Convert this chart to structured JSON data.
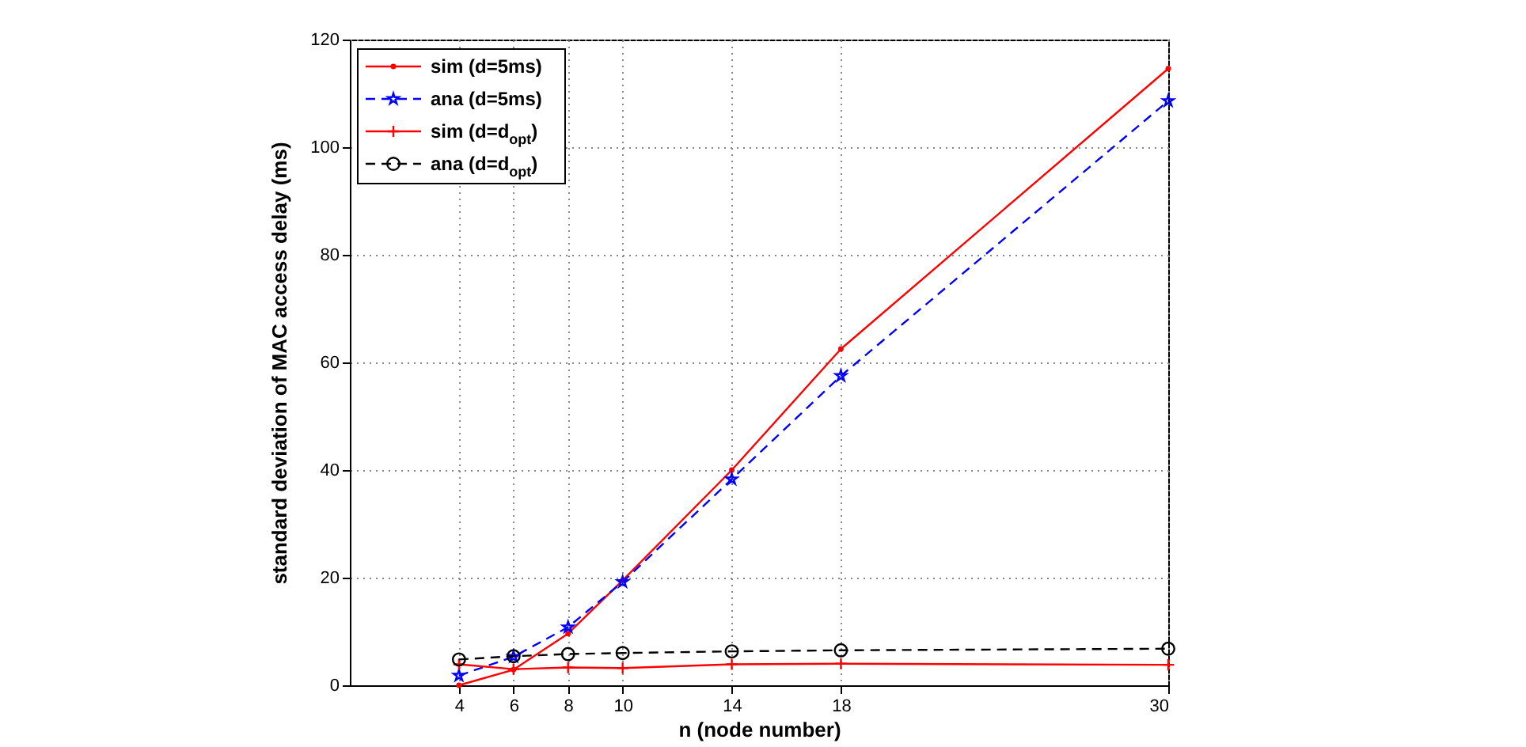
{
  "chart_data": {
    "type": "line",
    "xlabel": "n (node number)",
    "ylabel": "standard deviation of MAC access delay (ms)",
    "x": [
      4,
      6,
      8,
      10,
      14,
      18,
      30
    ],
    "xlim": [
      0,
      30
    ],
    "xticks": [
      4,
      6,
      8,
      10,
      14,
      18,
      30
    ],
    "ylim": [
      0,
      120
    ],
    "yticks": [
      0,
      20,
      40,
      60,
      80,
      100,
      120
    ],
    "grid": true,
    "legend": "top left",
    "series": [
      {
        "name": "sim (d=5ms)",
        "color": "#ff0000",
        "line_style": "solid",
        "marker": "circle",
        "values": [
          0,
          2.9,
          9.6,
          19.5,
          40,
          62.5,
          114.6
        ]
      },
      {
        "name": "ana (d=5ms)",
        "color": "#0000ff",
        "line_style": "dashed",
        "marker": "star",
        "values": [
          1.8,
          5.3,
          10.8,
          19.2,
          38.3,
          57.5,
          108.6
        ]
      },
      {
        "name": "sim (d=d$_{opt}$)",
        "color": "#ff0000",
        "line_style": "solid",
        "marker": "cross",
        "values": [
          3.9,
          3.0,
          3.3,
          3.2,
          3.9,
          4.0,
          3.8
        ]
      },
      {
        "name": "ana (d=d$_{opt}$)",
        "color": "#000000",
        "line_style": "dashed",
        "marker": "circle_open",
        "values": [
          4.8,
          5.4,
          5.8,
          6.0,
          6.3,
          6.5,
          6.8
        ]
      }
    ]
  }
}
